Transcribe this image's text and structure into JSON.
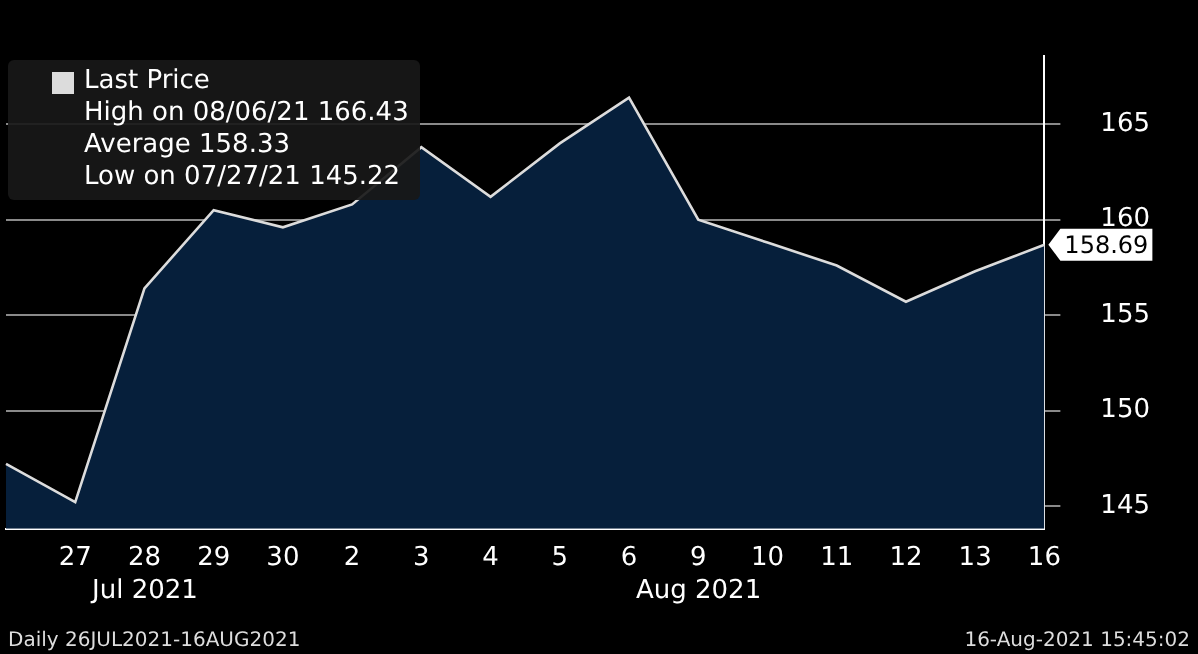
{
  "chart_data": {
    "type": "area",
    "categories": [
      null,
      "27",
      "28",
      "29",
      "30",
      "2",
      "3",
      "4",
      "5",
      "6",
      "9",
      "10",
      "11",
      "12",
      "13",
      "16"
    ],
    "series": [
      {
        "name": "Last Price",
        "color": "#dcdcdc",
        "values": [
          147.2,
          145.2,
          156.4,
          160.5,
          159.6,
          160.8,
          163.8,
          161.2,
          164.0,
          166.4,
          160.0,
          158.8,
          157.6,
          155.7,
          157.3,
          158.69
        ]
      }
    ],
    "ylim": [
      143.8,
      168.6
    ],
    "yticks": [
      145,
      150,
      155,
      160,
      165
    ],
    "grid": "y",
    "legend": "top left",
    "annotations": [
      "High on 08/06/21 166.43",
      "Average 158.33",
      "Low on 07/27/21 145.22",
      {
        "text": "158.69",
        "x": "16",
        "y": 158.69
      },
      "Jul 2021",
      "Aug 2021",
      "Daily 26JUL2021-16AUG2021",
      "16-Aug-2021 15:45:02"
    ]
  }
}
